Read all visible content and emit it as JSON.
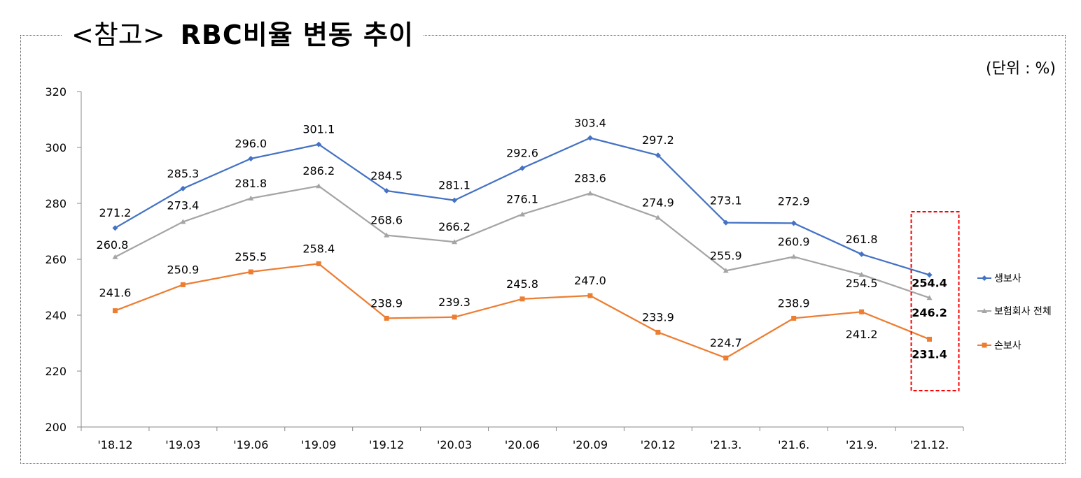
{
  "header": {
    "title_prefix": "<참고>",
    "title_main": "RBC비율 변동 추이",
    "unit": "(단위 : %)"
  },
  "chart_data": {
    "type": "line",
    "title": "RBC비율 변동 추이",
    "categories": [
      "'18.12",
      "'19.03",
      "'19.06",
      "'19.09",
      "'19.12",
      "'20.03",
      "'20.06",
      "'20.09",
      "'20.12",
      "'21.3.",
      "'21.6.",
      "'21.9.",
      "'21.12."
    ],
    "ylim": [
      200,
      320
    ],
    "yticks": [
      200,
      220,
      240,
      260,
      280,
      300,
      320
    ],
    "grid": false,
    "legend_position": "right",
    "series": [
      {
        "name": "생보사",
        "color": "#4472C4",
        "marker": "diamond",
        "values": [
          271.2,
          285.3,
          296.0,
          301.1,
          284.5,
          281.1,
          292.6,
          303.4,
          297.2,
          273.1,
          272.9,
          261.8,
          254.4
        ]
      },
      {
        "name": "보험회사 전체",
        "color": "#A5A5A5",
        "marker": "triangle",
        "values": [
          260.8,
          273.4,
          281.8,
          286.2,
          268.6,
          266.2,
          276.1,
          283.6,
          274.9,
          255.9,
          260.9,
          254.5,
          246.2
        ]
      },
      {
        "name": "손보사",
        "color": "#ED7D31",
        "marker": "square",
        "values": [
          241.6,
          250.9,
          255.5,
          258.4,
          238.9,
          239.3,
          245.8,
          247.0,
          233.9,
          224.7,
          238.9,
          241.2,
          231.4
        ]
      }
    ],
    "highlight": {
      "category": "'21.12.",
      "border_color": "#FF0000",
      "style": "dashed"
    }
  }
}
